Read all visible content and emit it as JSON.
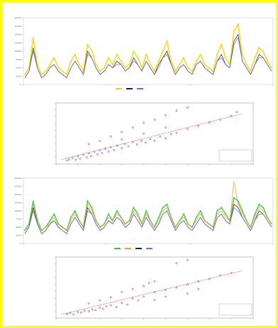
{
  "chart_data": [
    {
      "type": "line",
      "title": "",
      "subtitle_left": "",
      "subtitle_right": "",
      "ylim": [
        0,
        20000
      ],
      "y_ticks": [
        0,
        2500,
        5000,
        7500,
        10000,
        12500,
        15000,
        17500,
        20000
      ],
      "x_count": 60,
      "series": [
        {
          "name": "",
          "color": "#f2d300",
          "values": [
            3,
            5,
            14,
            6,
            3,
            4,
            6,
            8,
            5,
            4,
            3,
            7,
            9,
            6,
            4,
            12,
            10,
            6,
            4,
            5,
            8,
            6,
            9,
            7,
            5,
            6,
            10,
            8,
            5,
            9,
            6,
            4,
            7,
            10,
            13,
            7,
            4,
            6,
            8,
            5,
            4,
            7,
            9,
            6,
            5,
            4,
            9,
            12,
            8,
            6,
            16,
            18,
            9,
            6,
            4,
            8,
            11,
            10,
            7,
            5
          ]
        },
        {
          "name": "",
          "color": "#222222",
          "values": [
            2,
            4,
            11,
            5,
            2,
            3,
            5,
            6,
            4,
            3,
            2,
            5,
            7,
            5,
            3,
            10,
            8,
            5,
            3,
            4,
            6,
            5,
            7,
            6,
            4,
            5,
            8,
            6,
            4,
            7,
            5,
            3,
            6,
            8,
            10,
            6,
            3,
            5,
            6,
            4,
            3,
            6,
            7,
            5,
            4,
            3,
            7,
            9,
            6,
            5,
            13,
            15,
            7,
            5,
            3,
            6,
            9,
            8,
            6,
            4
          ]
        },
        {
          "name": "",
          "color": "#6a6ad8",
          "values": [
            2,
            4,
            10,
            5,
            2,
            3,
            5,
            6,
            4,
            3,
            2,
            5,
            7,
            5,
            3,
            9,
            8,
            5,
            3,
            4,
            6,
            5,
            6,
            6,
            4,
            5,
            7,
            6,
            4,
            7,
            5,
            3,
            5,
            8,
            9,
            6,
            3,
            5,
            6,
            4,
            3,
            6,
            7,
            5,
            4,
            3,
            7,
            8,
            6,
            5,
            12,
            14,
            7,
            5,
            3,
            6,
            8,
            8,
            6,
            4
          ]
        }
      ]
    },
    {
      "type": "scatter",
      "title": "",
      "xlim": [
        0,
        18
      ],
      "ylim": [
        0,
        20
      ],
      "fit_line": [
        [
          0.5,
          1.5
        ],
        [
          17,
          16.5
        ]
      ],
      "legend": [],
      "points": [
        [
          1,
          1.2
        ],
        [
          1.2,
          1.5
        ],
        [
          1.5,
          2
        ],
        [
          1.8,
          1.4
        ],
        [
          2,
          2.5
        ],
        [
          2.2,
          1.8
        ],
        [
          2.5,
          3
        ],
        [
          2.8,
          2.2
        ],
        [
          3,
          3.5
        ],
        [
          3.2,
          2.6
        ],
        [
          3.5,
          4
        ],
        [
          3.8,
          3.2
        ],
        [
          4,
          4.5
        ],
        [
          4.2,
          3.6
        ],
        [
          4.5,
          5
        ],
        [
          4.8,
          4.1
        ],
        [
          5,
          5.5
        ],
        [
          5.3,
          4.6
        ],
        [
          5.6,
          6
        ],
        [
          6,
          5.2
        ],
        [
          6.3,
          6.6
        ],
        [
          6.6,
          5.8
        ],
        [
          7,
          7.2
        ],
        [
          7.4,
          6.4
        ],
        [
          7.8,
          7.6
        ],
        [
          8.2,
          7
        ],
        [
          8.6,
          8.2
        ],
        [
          9,
          7.6
        ],
        [
          9.5,
          9
        ],
        [
          10,
          8.4
        ],
        [
          10.5,
          9.8
        ],
        [
          11,
          10.2
        ],
        [
          12,
          11.5
        ],
        [
          13,
          12.5
        ],
        [
          14,
          13.6
        ],
        [
          15,
          14.5
        ],
        [
          16,
          15.8
        ],
        [
          16.5,
          17
        ],
        [
          3,
          6.5
        ],
        [
          4,
          7.5
        ],
        [
          5,
          9
        ],
        [
          6,
          10.5
        ],
        [
          7,
          12
        ],
        [
          8,
          13.5
        ],
        [
          9,
          14.5
        ],
        [
          10,
          16
        ],
        [
          11,
          17.5
        ],
        [
          12,
          18.5
        ],
        [
          6,
          8
        ],
        [
          8,
          10
        ],
        [
          10,
          12
        ]
      ]
    },
    {
      "type": "line",
      "title": "",
      "subtitle_left": "",
      "subtitle_right": "",
      "ylim": [
        0,
        20000
      ],
      "y_ticks": [
        0,
        2500,
        5000,
        7500,
        10000,
        12500,
        15000,
        17500,
        20000
      ],
      "x_count": 60,
      "series": [
        {
          "name": "",
          "color": "#3cc43c",
          "values": [
            4,
            6,
            13,
            7,
            4,
            5,
            7,
            9,
            6,
            5,
            4,
            8,
            10,
            7,
            5,
            13,
            11,
            7,
            5,
            6,
            9,
            7,
            10,
            8,
            6,
            7,
            11,
            9,
            6,
            10,
            7,
            5,
            8,
            11,
            12,
            8,
            5,
            7,
            9,
            6,
            5,
            8,
            10,
            7,
            6,
            5,
            10,
            11,
            9,
            7,
            14,
            13,
            10,
            7,
            5,
            9,
            12,
            11,
            8,
            6
          ]
        },
        {
          "name": "",
          "color": "#f0a030",
          "values": [
            4,
            5,
            12,
            6,
            4,
            5,
            6,
            8,
            5,
            5,
            4,
            7,
            9,
            7,
            5,
            12,
            10,
            7,
            5,
            6,
            8,
            7,
            9,
            8,
            6,
            7,
            10,
            8,
            6,
            9,
            7,
            5,
            7,
            10,
            11,
            8,
            5,
            7,
            8,
            6,
            5,
            7,
            9,
            7,
            6,
            5,
            9,
            10,
            8,
            7,
            19,
            12,
            9,
            7,
            5,
            8,
            11,
            10,
            8,
            6
          ]
        },
        {
          "name": "",
          "color": "#222222",
          "values": [
            3,
            5,
            11,
            6,
            3,
            4,
            6,
            7,
            5,
            4,
            3,
            6,
            8,
            6,
            4,
            11,
            9,
            6,
            4,
            5,
            7,
            6,
            8,
            7,
            5,
            6,
            9,
            7,
            5,
            8,
            6,
            4,
            6,
            9,
            10,
            7,
            4,
            6,
            7,
            5,
            4,
            6,
            8,
            6,
            5,
            4,
            8,
            9,
            7,
            6,
            12,
            11,
            8,
            6,
            4,
            7,
            10,
            9,
            7,
            5
          ]
        },
        {
          "name": "",
          "color": "#7070e0",
          "values": [
            3,
            5,
            10,
            6,
            3,
            4,
            6,
            7,
            5,
            4,
            3,
            6,
            8,
            6,
            4,
            10,
            9,
            6,
            4,
            5,
            7,
            6,
            8,
            7,
            5,
            6,
            9,
            7,
            5,
            8,
            6,
            4,
            6,
            9,
            10,
            7,
            4,
            6,
            7,
            5,
            4,
            6,
            8,
            6,
            5,
            4,
            8,
            9,
            7,
            6,
            11,
            10,
            8,
            6,
            4,
            7,
            9,
            9,
            7,
            5
          ]
        }
      ]
    },
    {
      "type": "scatter",
      "title": "",
      "xlim": [
        0,
        18
      ],
      "ylim": [
        0,
        20
      ],
      "fit_line": [
        [
          0.5,
          1.2
        ],
        [
          17,
          15.5
        ]
      ],
      "legend": [],
      "points": [
        [
          1,
          1.3
        ],
        [
          1.3,
          1.6
        ],
        [
          1.6,
          1.2
        ],
        [
          2,
          2
        ],
        [
          2.3,
          1.8
        ],
        [
          2.6,
          2.4
        ],
        [
          3,
          2.2
        ],
        [
          3.3,
          2.8
        ],
        [
          3.6,
          2.6
        ],
        [
          4,
          3.4
        ],
        [
          4.3,
          3
        ],
        [
          4.6,
          3.8
        ],
        [
          5,
          4.2
        ],
        [
          5.5,
          3.6
        ],
        [
          6,
          5
        ],
        [
          6.5,
          4.4
        ],
        [
          7,
          6.4
        ],
        [
          7.5,
          5.8
        ],
        [
          8,
          7
        ],
        [
          9,
          8.5
        ],
        [
          10,
          9.2
        ],
        [
          11,
          10
        ],
        [
          12,
          11
        ],
        [
          13,
          12
        ],
        [
          14,
          12.8
        ],
        [
          15,
          14
        ],
        [
          16,
          14.8
        ],
        [
          6,
          8.5
        ],
        [
          7,
          9.5
        ],
        [
          8,
          10.5
        ],
        [
          8.5,
          11.5
        ],
        [
          9,
          12
        ],
        [
          9,
          6
        ],
        [
          10,
          7
        ],
        [
          11,
          18
        ],
        [
          12,
          19
        ],
        [
          12,
          8
        ],
        [
          13,
          9.5
        ],
        [
          5,
          6.8
        ],
        [
          4,
          5.8
        ],
        [
          3,
          4.8
        ]
      ]
    }
  ]
}
